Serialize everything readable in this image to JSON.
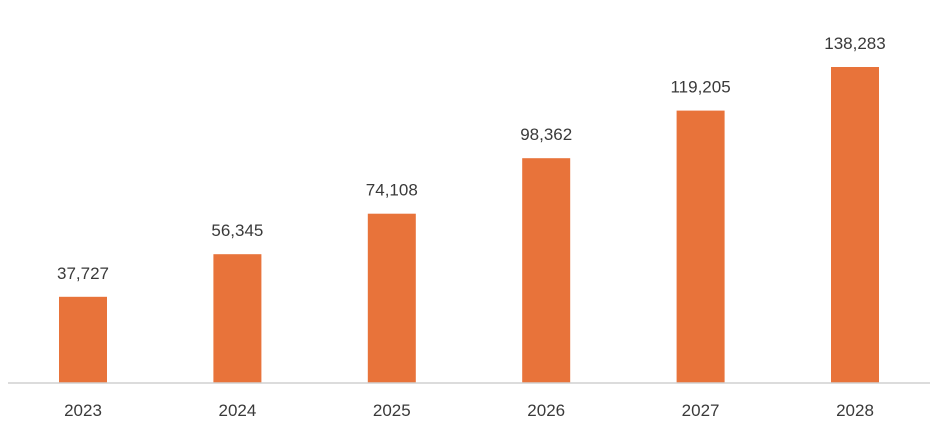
{
  "chart_data": {
    "type": "bar",
    "title": "",
    "xlabel": "",
    "ylabel": "",
    "categories": [
      "2023",
      "2024",
      "2025",
      "2026",
      "2027",
      "2028"
    ],
    "values": [
      37727,
      56345,
      74108,
      98362,
      119205,
      138283
    ],
    "value_labels": [
      "37,727",
      "56,345",
      "74,108",
      "98,362",
      "119,205",
      "138,283"
    ],
    "ylim": [
      0,
      150000
    ],
    "grid": false,
    "legend": "none",
    "colors": {
      "bar": "#E8733A",
      "axis": "#d0d0d0",
      "text": "#3a3a3a"
    }
  }
}
